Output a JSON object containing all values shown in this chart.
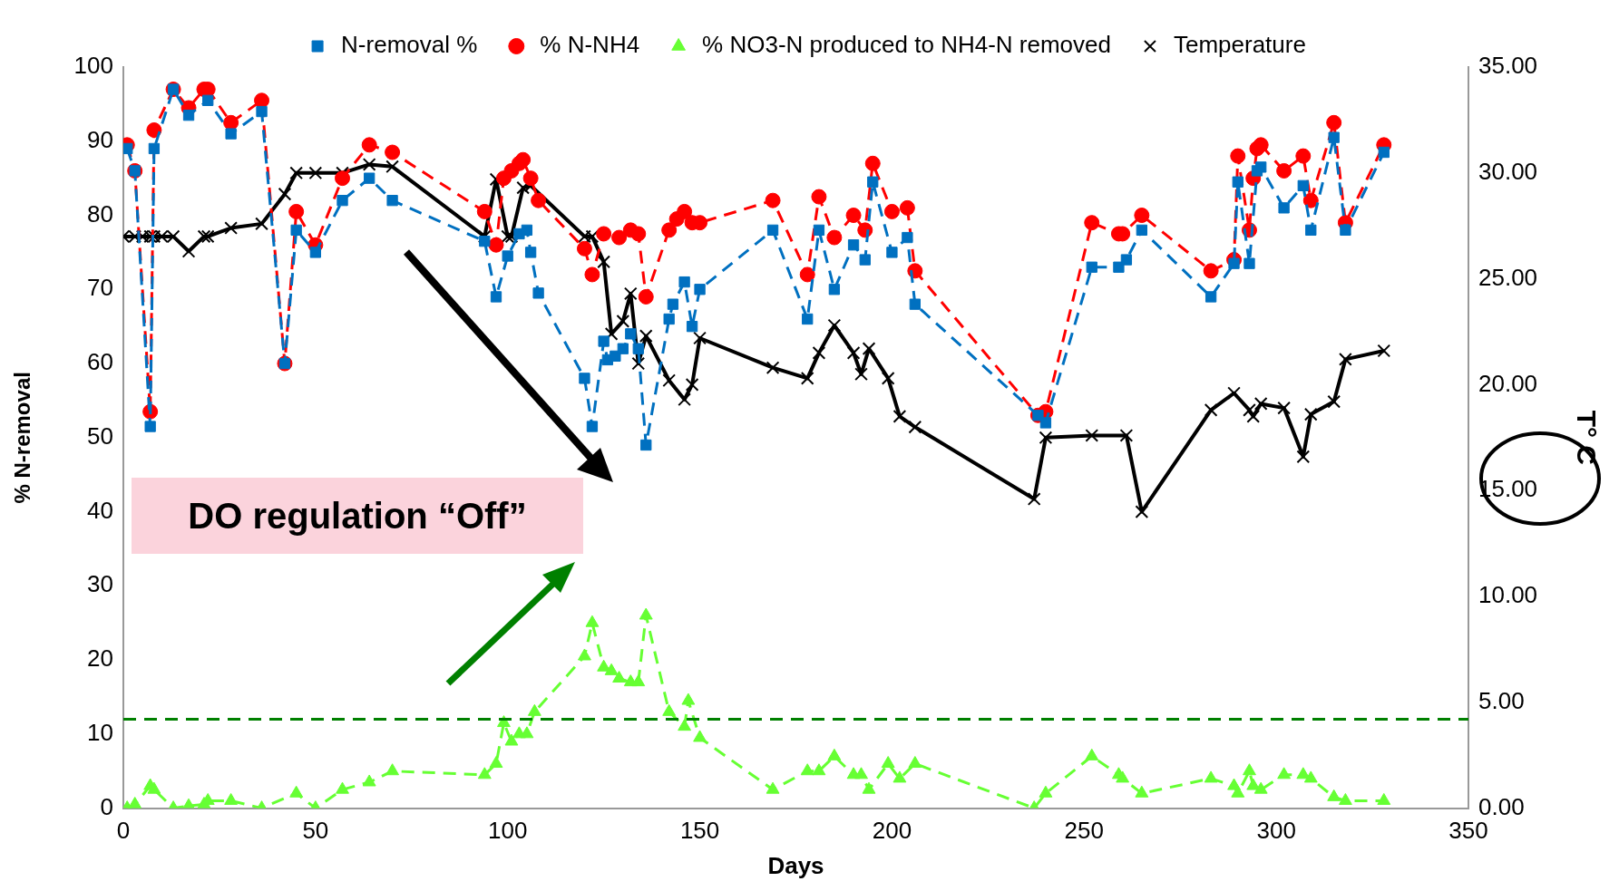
{
  "chart_data": {
    "type": "line",
    "xlabel": "Days",
    "ylabel": "% N-removal",
    "y2label": "T° C",
    "xlim": [
      0,
      350
    ],
    "xticks": [
      0,
      50,
      100,
      150,
      200,
      250,
      300,
      350
    ],
    "ylim": [
      0,
      100
    ],
    "yticks": [
      0,
      10,
      20,
      30,
      40,
      50,
      60,
      70,
      80,
      90,
      100
    ],
    "y2lim": [
      0,
      35
    ],
    "y2ticks": [
      {
        "value": 0,
        "label": "0.00"
      },
      {
        "value": 5,
        "label": "5.00"
      },
      {
        "value": 10,
        "label": "10.00"
      },
      {
        "value": 15,
        "label": "15.00"
      },
      {
        "value": 20,
        "label": "20.00"
      },
      {
        "value": 25,
        "label": "25.00"
      },
      {
        "value": 30,
        "label": "30.00"
      },
      {
        "value": 35,
        "label": "35.00"
      }
    ],
    "grid": false,
    "legend": "top",
    "series": [
      {
        "name": "N-removal %",
        "color": "#0070c0",
        "marker": "square",
        "line_style": "dashed",
        "x": [
          1,
          3,
          7,
          8,
          13,
          17,
          22,
          28,
          36,
          42,
          45,
          50,
          57,
          64,
          70,
          94,
          97,
          100,
          103,
          105,
          106,
          108,
          120,
          122,
          125,
          126,
          128,
          130,
          132,
          134,
          136,
          142,
          143,
          146,
          148,
          150,
          169,
          178,
          181,
          185,
          190,
          193,
          195,
          200,
          204,
          206,
          238,
          240,
          252,
          259,
          261,
          265,
          283,
          289,
          290,
          293,
          295,
          296,
          302,
          307,
          309,
          315,
          318,
          328
        ],
        "values": [
          89,
          86,
          51.5,
          89,
          97,
          93.5,
          95.5,
          91,
          94,
          60,
          78,
          75,
          82,
          85,
          82,
          76.5,
          69,
          74.5,
          77.5,
          78,
          75,
          69.5,
          58,
          51.5,
          63,
          60.5,
          61,
          62,
          64,
          62,
          49,
          66,
          68,
          71,
          65,
          70,
          78,
          66,
          78,
          70,
          76,
          74,
          84.5,
          75,
          77,
          68,
          53,
          52,
          73,
          73,
          74,
          78,
          69,
          73.5,
          84.5,
          73.5,
          86,
          86.5,
          81,
          84,
          78,
          90.5,
          78,
          88.5
        ]
      },
      {
        "name": "% N-NH4",
        "color": "#ff0000",
        "marker": "circle",
        "line_style": "dashed",
        "x": [
          1,
          3,
          7,
          8,
          13,
          17,
          21,
          22,
          28,
          36,
          42,
          45,
          50,
          57,
          64,
          70,
          94,
          97,
          99,
          101,
          103,
          104,
          106,
          108,
          120,
          122,
          125,
          129,
          132,
          134,
          136,
          142,
          144,
          146,
          148,
          150,
          169,
          178,
          181,
          185,
          190,
          193,
          195,
          200,
          204,
          206,
          238,
          240,
          252,
          259,
          260,
          265,
          283,
          289,
          290,
          293,
          294,
          295,
          296,
          302,
          307,
          309,
          315,
          318,
          328
        ],
        "values": [
          89.5,
          86,
          53.5,
          91.5,
          97,
          94.5,
          97,
          97,
          92.5,
          95.5,
          60,
          80.5,
          76,
          85,
          89.5,
          88.5,
          80.5,
          76,
          85,
          86,
          87,
          87.5,
          85,
          82,
          75.5,
          72,
          77.5,
          77,
          78,
          77.5,
          69,
          78,
          79.5,
          80.5,
          79,
          79,
          82,
          72,
          82.5,
          77,
          80,
          78,
          87,
          80.5,
          81,
          72.5,
          53,
          53.5,
          79,
          77.5,
          77.5,
          80,
          72.5,
          74,
          88,
          78,
          85,
          89,
          89.5,
          86,
          88,
          82,
          92.5,
          79,
          89.5
        ]
      },
      {
        "name": "% NO3-N produced to NH4-N removed",
        "color": "#66ff33",
        "marker": "triangle",
        "line_style": "dashed",
        "x": [
          1,
          3,
          7,
          8,
          13,
          17,
          21,
          22,
          28,
          36,
          45,
          50,
          57,
          64,
          70,
          94,
          97,
          99,
          101,
          103,
          105,
          107,
          120,
          122,
          125,
          127,
          129,
          132,
          134,
          136,
          142,
          146,
          147,
          150,
          169,
          178,
          181,
          185,
          190,
          192,
          194,
          199,
          202,
          206,
          237,
          240,
          252,
          259,
          260,
          265,
          283,
          289,
          290,
          293,
          294,
          296,
          302,
          307,
          309,
          315,
          318,
          328
        ],
        "values": [
          0,
          0.5,
          3,
          2.5,
          0,
          0.3,
          0.5,
          1,
          1,
          0,
          2,
          0,
          2.5,
          3.5,
          5,
          4.5,
          6,
          11.5,
          9,
          10,
          10,
          13,
          20.5,
          25,
          19,
          18.5,
          17.5,
          17,
          17,
          26,
          13,
          11,
          14.5,
          9.5,
          2.5,
          5,
          5,
          7,
          4.5,
          4.5,
          2.5,
          6,
          4,
          6,
          0,
          2,
          7,
          4.5,
          4,
          2,
          4,
          3,
          2,
          5,
          3,
          2.5,
          4.5,
          4.5,
          4,
          1.5,
          1,
          1
        ]
      },
      {
        "name": "Temperature",
        "color": "#000000",
        "marker": "cross",
        "line_style": "solid",
        "axis": "y2",
        "x": [
          0,
          3,
          5,
          7,
          8,
          10,
          13,
          17,
          21,
          22,
          28,
          36,
          42,
          45,
          50,
          57,
          64,
          70,
          94,
          97,
          100,
          101,
          104,
          106,
          120,
          122,
          125,
          127,
          130,
          132,
          134,
          136,
          142,
          146,
          148,
          150,
          169,
          178,
          181,
          185,
          190,
          192,
          194,
          199,
          202,
          206,
          237,
          240,
          252,
          261,
          265,
          283,
          289,
          293,
          294,
          296,
          302,
          307,
          309,
          315,
          318,
          328
        ],
        "values": [
          27,
          27,
          27,
          27,
          27,
          27,
          27,
          26.3,
          27,
          27,
          27.4,
          27.6,
          29,
          30,
          30,
          30,
          30.4,
          30.3,
          27,
          29.7,
          27,
          27,
          29.3,
          29.4,
          27,
          27,
          25.8,
          22.4,
          23,
          24.3,
          21,
          22.3,
          20.2,
          19.3,
          20,
          22.2,
          20.8,
          20.3,
          21.5,
          22.8,
          21.5,
          20.5,
          21.7,
          20.3,
          18.5,
          18,
          14.6,
          17.5,
          17.6,
          17.6,
          14,
          18.8,
          19.6,
          18.8,
          18.5,
          19.1,
          18.9,
          16.6,
          18.6,
          19.2,
          21.2,
          21.6
        ]
      }
    ],
    "ref_lines": [
      {
        "axis": "y",
        "value": 12,
        "color": "#008000",
        "line_style": "dashed"
      }
    ],
    "annotations": [
      "DO regulation “Off”"
    ]
  }
}
